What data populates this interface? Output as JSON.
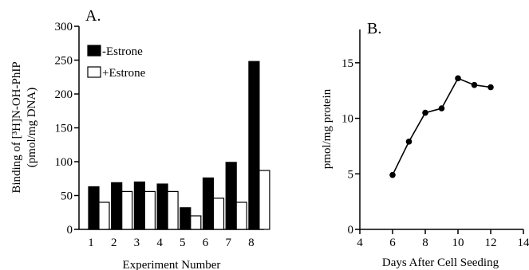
{
  "chart_data": [
    {
      "type": "bar",
      "panel_label": "A.",
      "xlabel": "Experiment Number",
      "ylabel_line1": "Binding of [³H]N-OH-PhIP",
      "ylabel_line2": "(pmol/mg DNA)",
      "ylim": [
        0,
        300
      ],
      "yticks": [
        0,
        50,
        100,
        150,
        200,
        250,
        300
      ],
      "categories": [
        "1",
        "2",
        "3",
        "4",
        "5",
        "6",
        "7",
        "8"
      ],
      "series": [
        {
          "name": "-Estrone",
          "color": "#000000",
          "values": [
            63,
            69,
            70,
            67,
            32,
            76,
            99,
            248
          ]
        },
        {
          "name": "+Estrone",
          "color": "#ffffff",
          "values": [
            40,
            56,
            56,
            56,
            20,
            46,
            40,
            87
          ]
        }
      ],
      "legend": "top-left",
      "grid": false
    },
    {
      "type": "line",
      "panel_label": "B.",
      "xlabel": "Days After Cell Seeding",
      "ylabel": "pmol/mg protein",
      "xlim": [
        4,
        14
      ],
      "ylim": [
        0,
        18
      ],
      "xticks": [
        4,
        6,
        8,
        10,
        12,
        14
      ],
      "yticks": [
        0,
        5,
        10,
        15
      ],
      "series": [
        {
          "x": [
            6,
            7,
            8,
            9,
            10,
            11,
            12
          ],
          "y": [
            4.9,
            7.9,
            10.5,
            10.9,
            13.6,
            13.0,
            12.8
          ]
        }
      ],
      "grid": false
    }
  ]
}
